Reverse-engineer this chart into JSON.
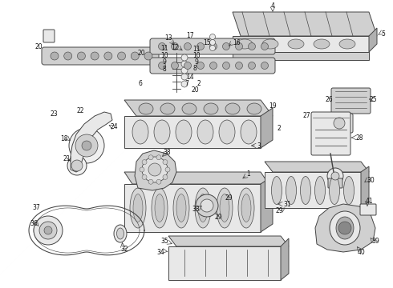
{
  "background_color": "#ffffff",
  "figsize": [
    4.9,
    3.6
  ],
  "dpi": 100,
  "line_color": "#444444",
  "fill_light": "#e8e8e8",
  "fill_mid": "#d0d0d0",
  "fill_dark": "#b0b0b0"
}
